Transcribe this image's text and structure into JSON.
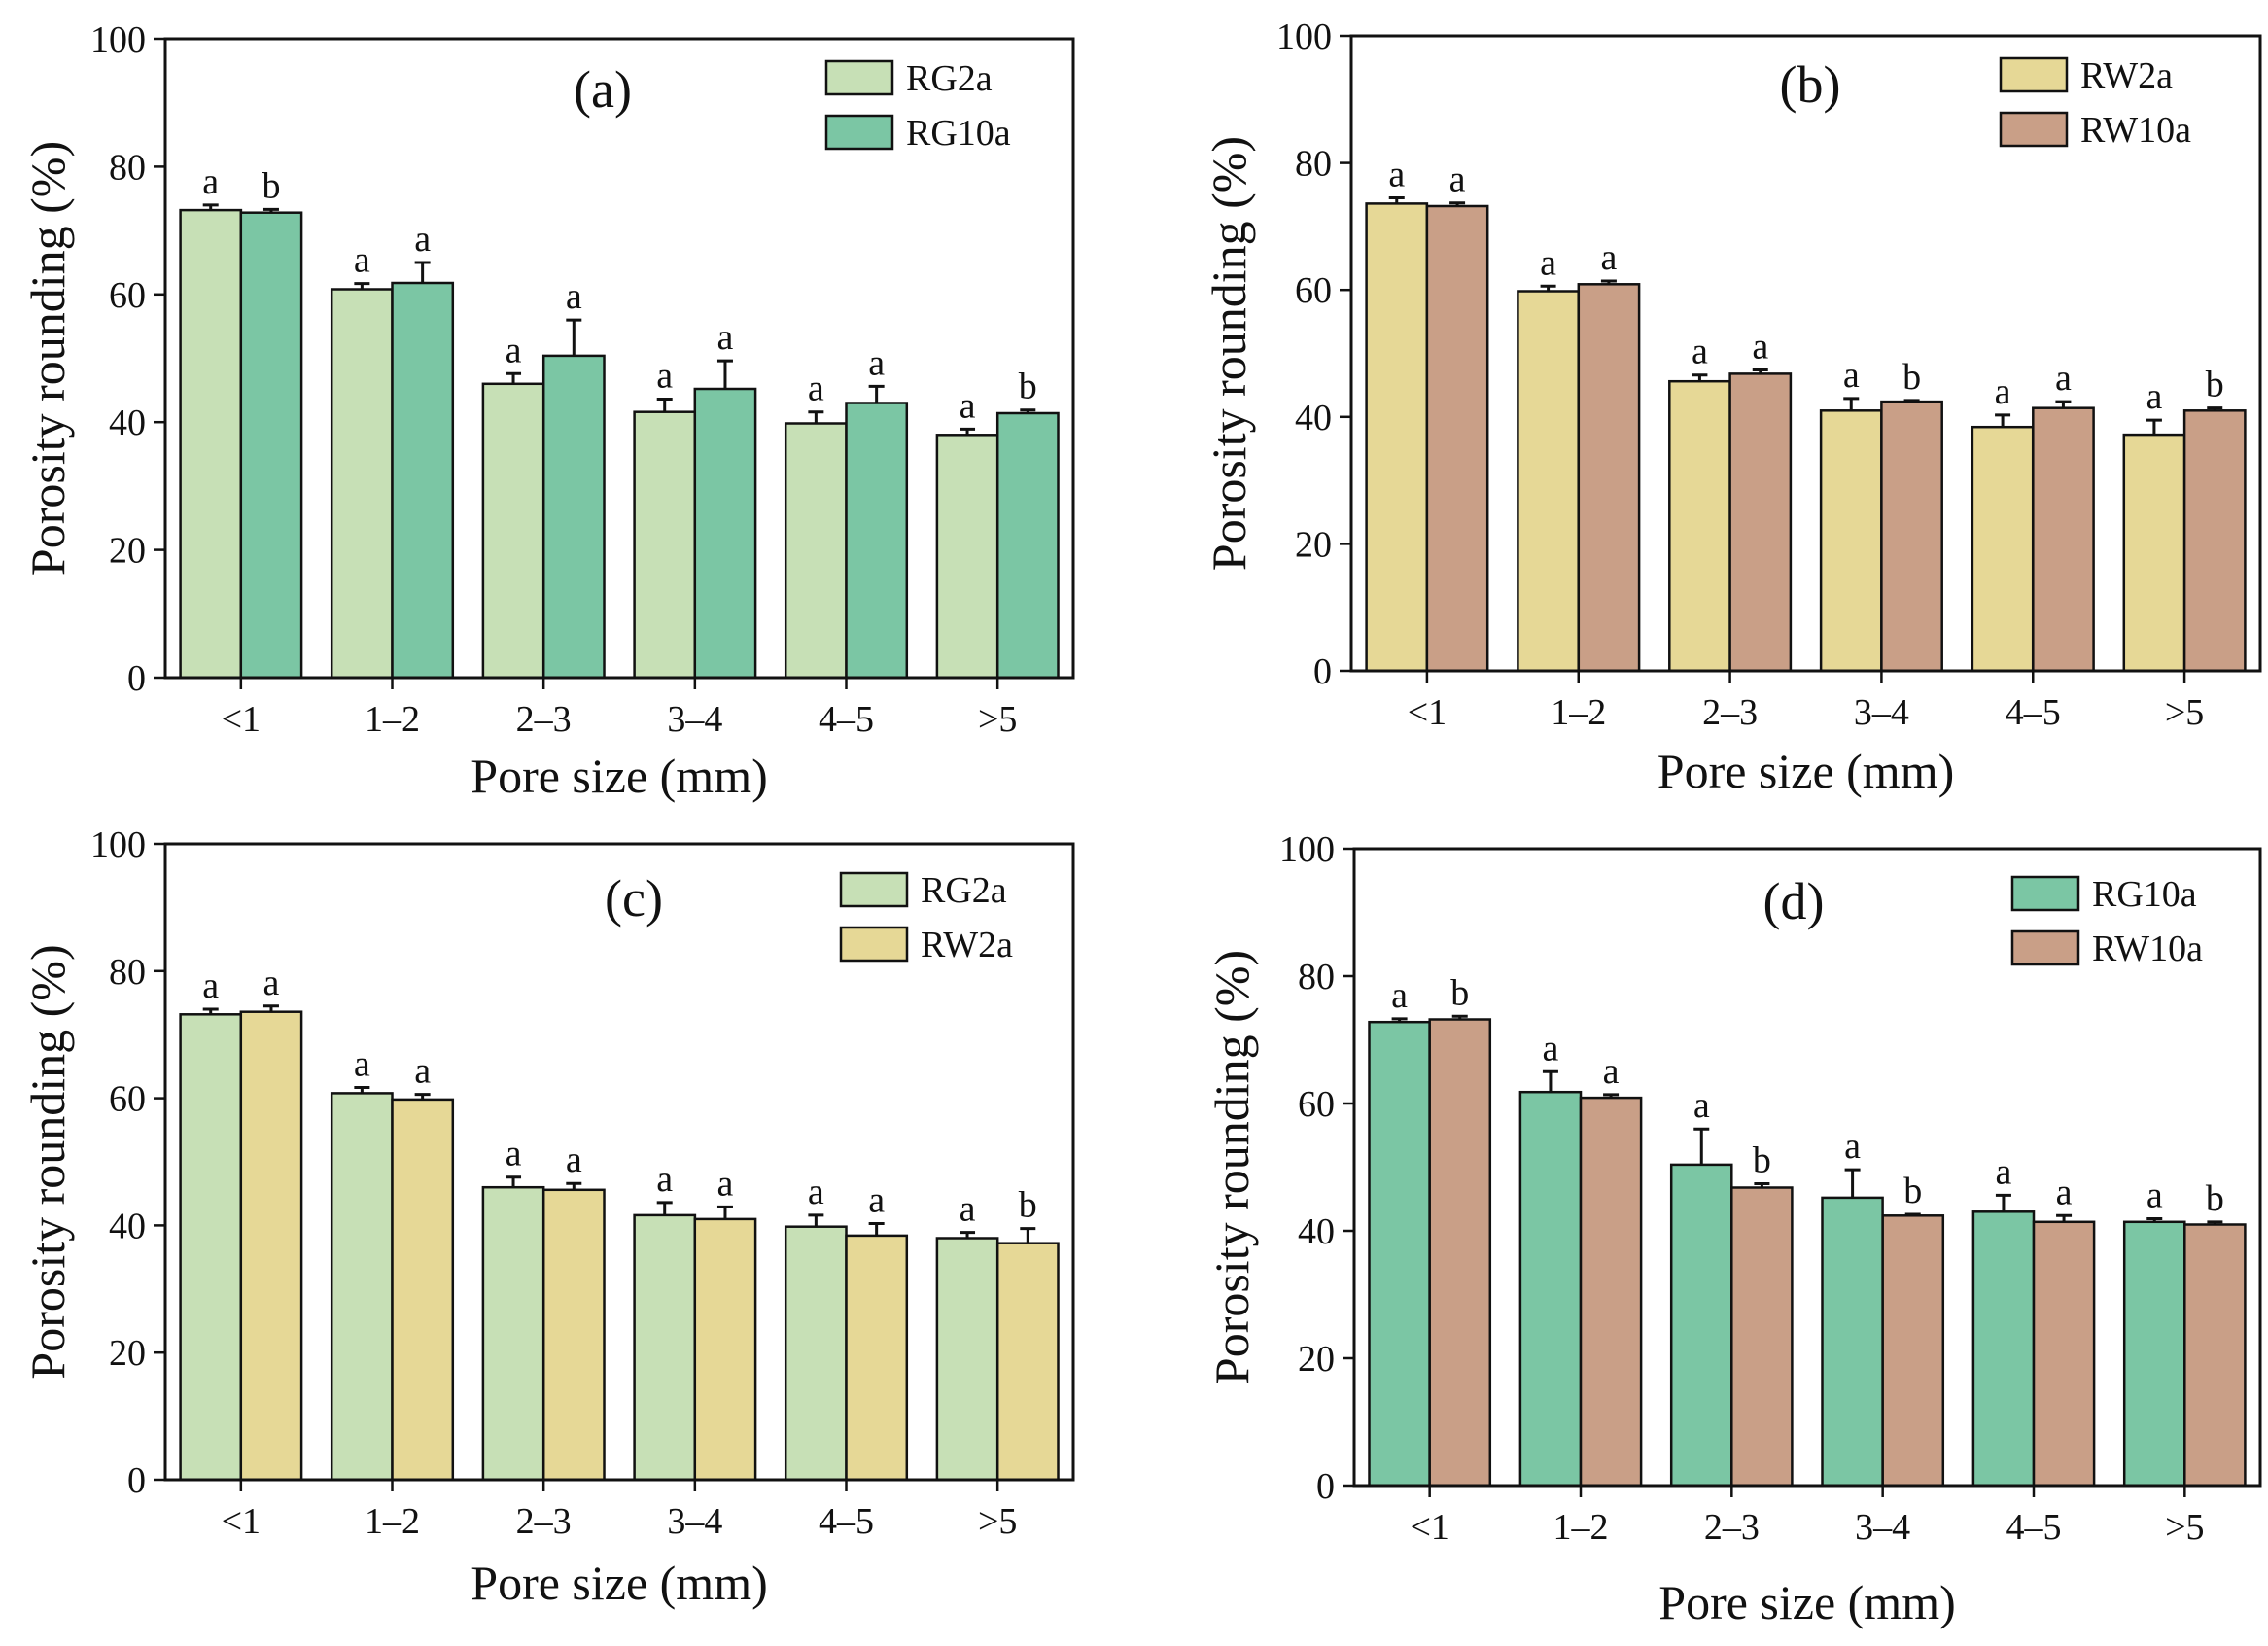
{
  "figure": {
    "colors": {
      "RG2a": "#c7e0b6",
      "RG10a": "#7bc6a4",
      "RW2a": "#e6d896",
      "RW10a": "#c99f87"
    }
  },
  "chart_data": [
    {
      "type": "bar",
      "panel": "(a)",
      "categories": [
        "<1",
        "1–2",
        "2–3",
        "3–4",
        "4–5",
        ">5"
      ],
      "xlabel": "Pore size (mm)",
      "ylabel": "Porosity rounding (%)",
      "ylim": [
        0,
        100
      ],
      "yticks": [
        "0",
        "20",
        "40",
        "60",
        "80",
        "100"
      ],
      "legend_position": "top-right",
      "series": [
        {
          "name": "RG2a",
          "color": "#c7e0b6",
          "values": [
            73.2,
            60.8,
            46.0,
            41.6,
            39.8,
            38.0
          ],
          "errors": [
            0.8,
            0.9,
            1.6,
            2.0,
            1.8,
            0.9
          ],
          "letters": [
            "a",
            "a",
            "a",
            "a",
            "a",
            "a"
          ]
        },
        {
          "name": "RG10a",
          "color": "#7bc6a4",
          "values": [
            72.8,
            61.8,
            50.4,
            45.2,
            43.0,
            41.4
          ],
          "errors": [
            0.5,
            3.2,
            5.6,
            4.4,
            2.6,
            0.5
          ],
          "letters": [
            "b",
            "a",
            "a",
            "a",
            "a",
            "b"
          ]
        }
      ]
    },
    {
      "type": "bar",
      "panel": "(b)",
      "categories": [
        "<1",
        "1–2",
        "2–3",
        "3–4",
        "4–5",
        ">5"
      ],
      "xlabel": "Pore size (mm)",
      "ylabel": "Porosity rounding (%)",
      "ylim": [
        0,
        100
      ],
      "yticks": [
        "0",
        "20",
        "40",
        "60",
        "80",
        "100"
      ],
      "legend_position": "top-right",
      "series": [
        {
          "name": "RW2a",
          "color": "#e6d896",
          "values": [
            73.6,
            59.8,
            45.6,
            41.0,
            38.4,
            37.2
          ],
          "errors": [
            0.9,
            0.8,
            1.0,
            1.9,
            1.9,
            2.3
          ],
          "letters": [
            "a",
            "a",
            "a",
            "a",
            "a",
            "a"
          ]
        },
        {
          "name": "RW10a",
          "color": "#c99f87",
          "values": [
            73.2,
            60.9,
            46.8,
            42.4,
            41.4,
            41.0
          ],
          "errors": [
            0.5,
            0.5,
            0.6,
            0.2,
            1.0,
            0.4
          ],
          "letters": [
            "a",
            "a",
            "a",
            "b",
            "a",
            "b"
          ]
        }
      ]
    },
    {
      "type": "bar",
      "panel": "(c)",
      "categories": [
        "<1",
        "1–2",
        "2–3",
        "3–4",
        "4–5",
        ">5"
      ],
      "xlabel": "Pore size (mm)",
      "ylabel": "Porosity rounding (%)",
      "ylim": [
        0,
        100
      ],
      "yticks": [
        "0",
        "20",
        "40",
        "60",
        "80",
        "100"
      ],
      "legend_position": "top-right",
      "series": [
        {
          "name": "RG2a",
          "color": "#c7e0b6",
          "values": [
            73.2,
            60.8,
            46.0,
            41.6,
            39.8,
            38.0
          ],
          "errors": [
            0.8,
            0.9,
            1.6,
            2.0,
            1.8,
            0.9
          ],
          "letters": [
            "a",
            "a",
            "a",
            "a",
            "a",
            "a"
          ]
        },
        {
          "name": "RW2a",
          "color": "#e6d896",
          "values": [
            73.6,
            59.8,
            45.6,
            41.0,
            38.4,
            37.2
          ],
          "errors": [
            0.9,
            0.8,
            1.0,
            1.9,
            1.9,
            2.3
          ],
          "letters": [
            "a",
            "a",
            "a",
            "a",
            "a",
            "b"
          ]
        }
      ]
    },
    {
      "type": "bar",
      "panel": "(d)",
      "categories": [
        "<1",
        "1–2",
        "2–3",
        "3–4",
        "4–5",
        ">5"
      ],
      "xlabel": "Pore size (mm)",
      "ylabel": "Porosity rounding (%)",
      "ylim": [
        0,
        100
      ],
      "yticks": [
        "0",
        "20",
        "40",
        "60",
        "80",
        "100"
      ],
      "legend_position": "top-right",
      "series": [
        {
          "name": "RG10a",
          "color": "#7bc6a4",
          "values": [
            72.8,
            61.8,
            50.4,
            45.2,
            43.0,
            41.4
          ],
          "errors": [
            0.5,
            3.2,
            5.6,
            4.4,
            2.6,
            0.5
          ],
          "letters": [
            "a",
            "a",
            "a",
            "a",
            "a",
            "a"
          ]
        },
        {
          "name": "RW10a",
          "color": "#c99f87",
          "values": [
            73.2,
            60.9,
            46.8,
            42.4,
            41.4,
            41.0
          ],
          "errors": [
            0.5,
            0.5,
            0.6,
            0.2,
            1.0,
            0.4
          ],
          "letters": [
            "b",
            "a",
            "b",
            "b",
            "a",
            "b"
          ]
        }
      ]
    }
  ]
}
